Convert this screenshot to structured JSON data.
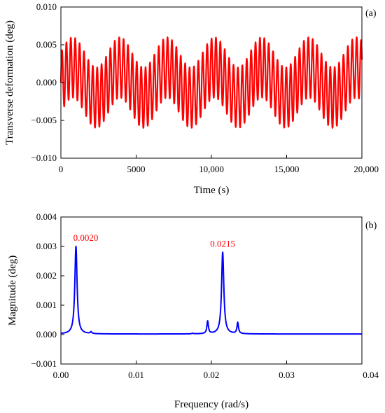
{
  "chart_data": [
    {
      "type": "line",
      "panel_label": "(a)",
      "xlabel": "Time (s)",
      "ylabel": "Transverse deformation (deg)",
      "xlim": [
        0,
        20000
      ],
      "ylim": [
        -0.01,
        0.01
      ],
      "x_ticks": [
        0,
        5000,
        10000,
        15000,
        20000
      ],
      "x_tick_labels": [
        "0",
        "5000",
        "10,000",
        "15,000",
        "20,000"
      ],
      "y_ticks": [
        -0.01,
        -0.005,
        0.0,
        0.005,
        0.01
      ],
      "y_tick_labels": [
        "−0.010",
        "−0.005",
        "0.000",
        "0.005",
        "0.010"
      ],
      "grid": false,
      "series": [
        {
          "color": "#ff0000",
          "components": [
            {
              "amplitude": 0.002,
              "frequency_rad_s": 0.002
            },
            {
              "amplitude": 0.004,
              "frequency_rad_s": 0.0215
            }
          ]
        }
      ]
    },
    {
      "type": "line",
      "panel_label": "(b)",
      "xlabel": "Frequency (rad/s)",
      "ylabel": "Magnitude (deg)",
      "xlim": [
        0,
        0.04
      ],
      "ylim": [
        -0.001,
        0.004
      ],
      "x_ticks": [
        0,
        0.01,
        0.02,
        0.03,
        0.04
      ],
      "x_tick_labels": [
        "0.00",
        "0.01",
        "0.02",
        "0.03",
        "0.04"
      ],
      "y_ticks": [
        -0.001,
        0.0,
        0.001,
        0.002,
        0.003,
        0.004
      ],
      "y_tick_labels": [
        "−0.001",
        "0.000",
        "0.001",
        "0.002",
        "0.003",
        "0.004"
      ],
      "grid": false,
      "series": [
        {
          "color": "#0000ff",
          "baseline": 2e-05,
          "peaks": [
            {
              "x": 0.002,
              "y": 0.003
            },
            {
              "x": 0.004,
              "y": 8e-05
            },
            {
              "x": 0.0175,
              "y": 4e-05
            },
            {
              "x": 0.0195,
              "y": 0.00045
            },
            {
              "x": 0.0215,
              "y": 0.0028
            },
            {
              "x": 0.0235,
              "y": 0.0004
            }
          ]
        }
      ],
      "annotations": [
        {
          "text": "0.0020",
          "x": 0.002,
          "y": 0.003,
          "color": "#ff0000"
        },
        {
          "text": "0.0215",
          "x": 0.0215,
          "y": 0.0028,
          "color": "#ff0000"
        }
      ]
    }
  ]
}
